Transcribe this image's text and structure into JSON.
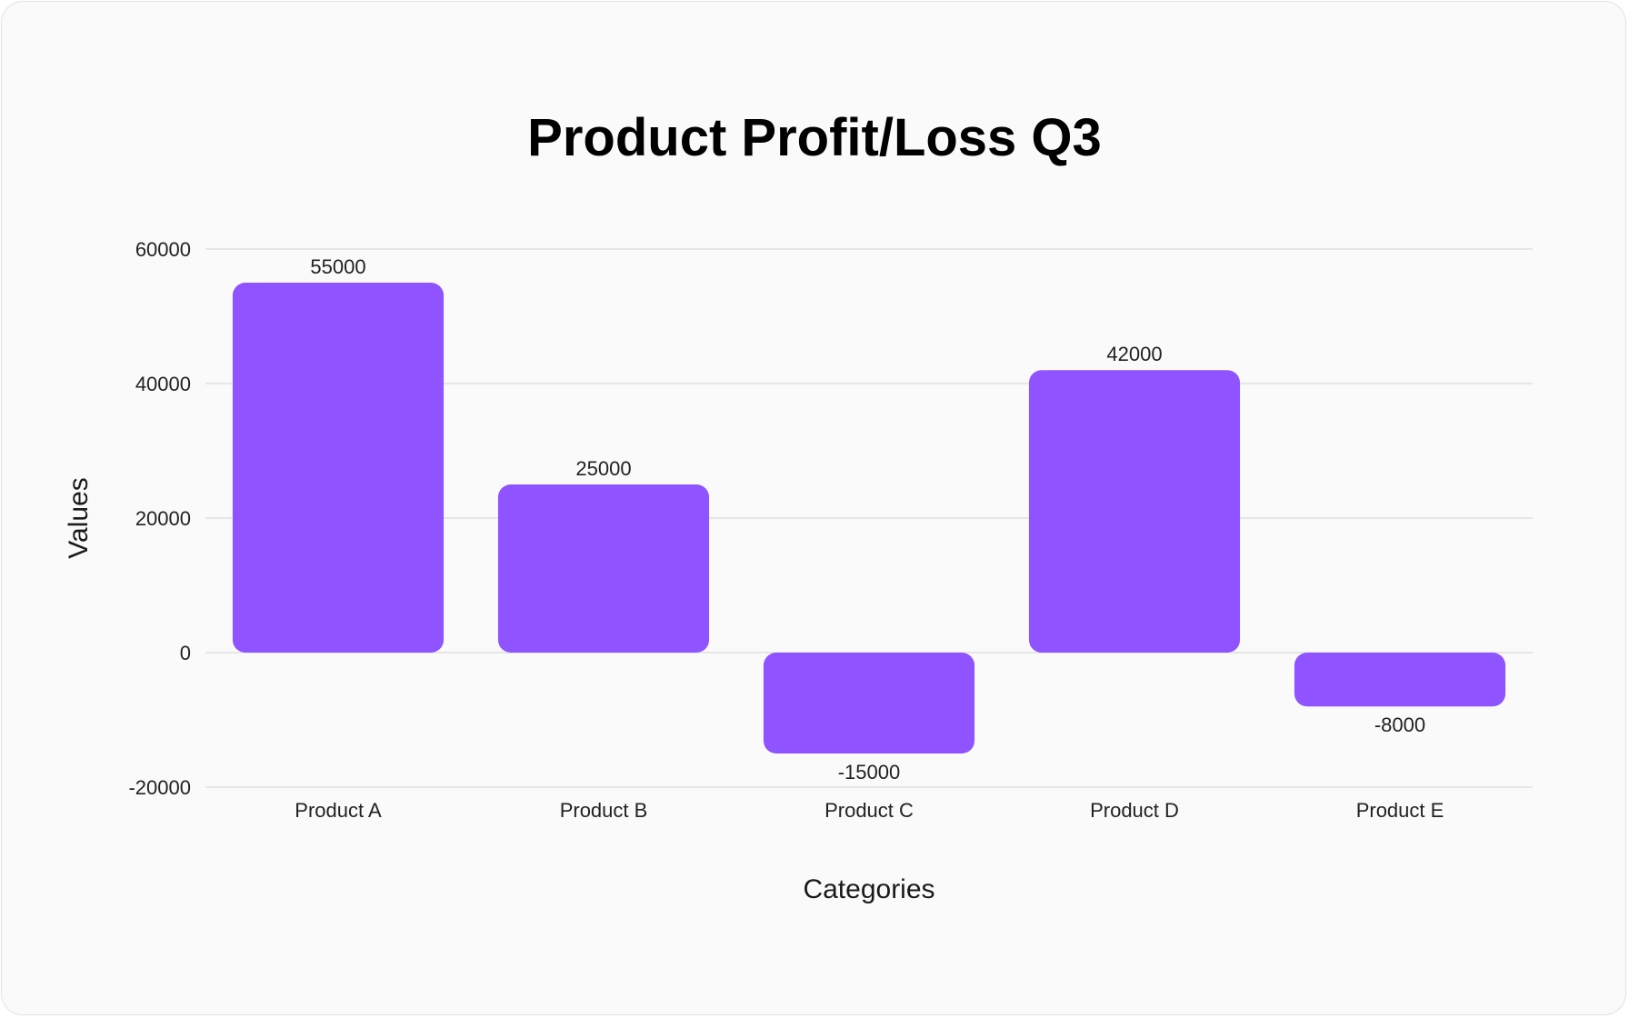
{
  "chart_data": {
    "type": "bar",
    "title": "Product Profit/Loss Q3",
    "xlabel": "Categories",
    "ylabel": "Values",
    "categories": [
      "Product A",
      "Product B",
      "Product C",
      "Product D",
      "Product E"
    ],
    "values": [
      55000,
      25000,
      -15000,
      42000,
      -8000
    ],
    "data_labels": [
      "55000",
      "25000",
      "-15000",
      "42000",
      "-8000"
    ],
    "ylim": [
      -20000,
      60000
    ],
    "yticks": [
      60000,
      40000,
      20000,
      0,
      -20000
    ],
    "ytick_labels": [
      "60000",
      "40000",
      "20000",
      "0",
      "-20000"
    ],
    "grid": true,
    "legend": "none",
    "colors": {
      "bar": "#8f53ff",
      "grid": "#e0e0e0",
      "background": "#fafafa"
    }
  }
}
